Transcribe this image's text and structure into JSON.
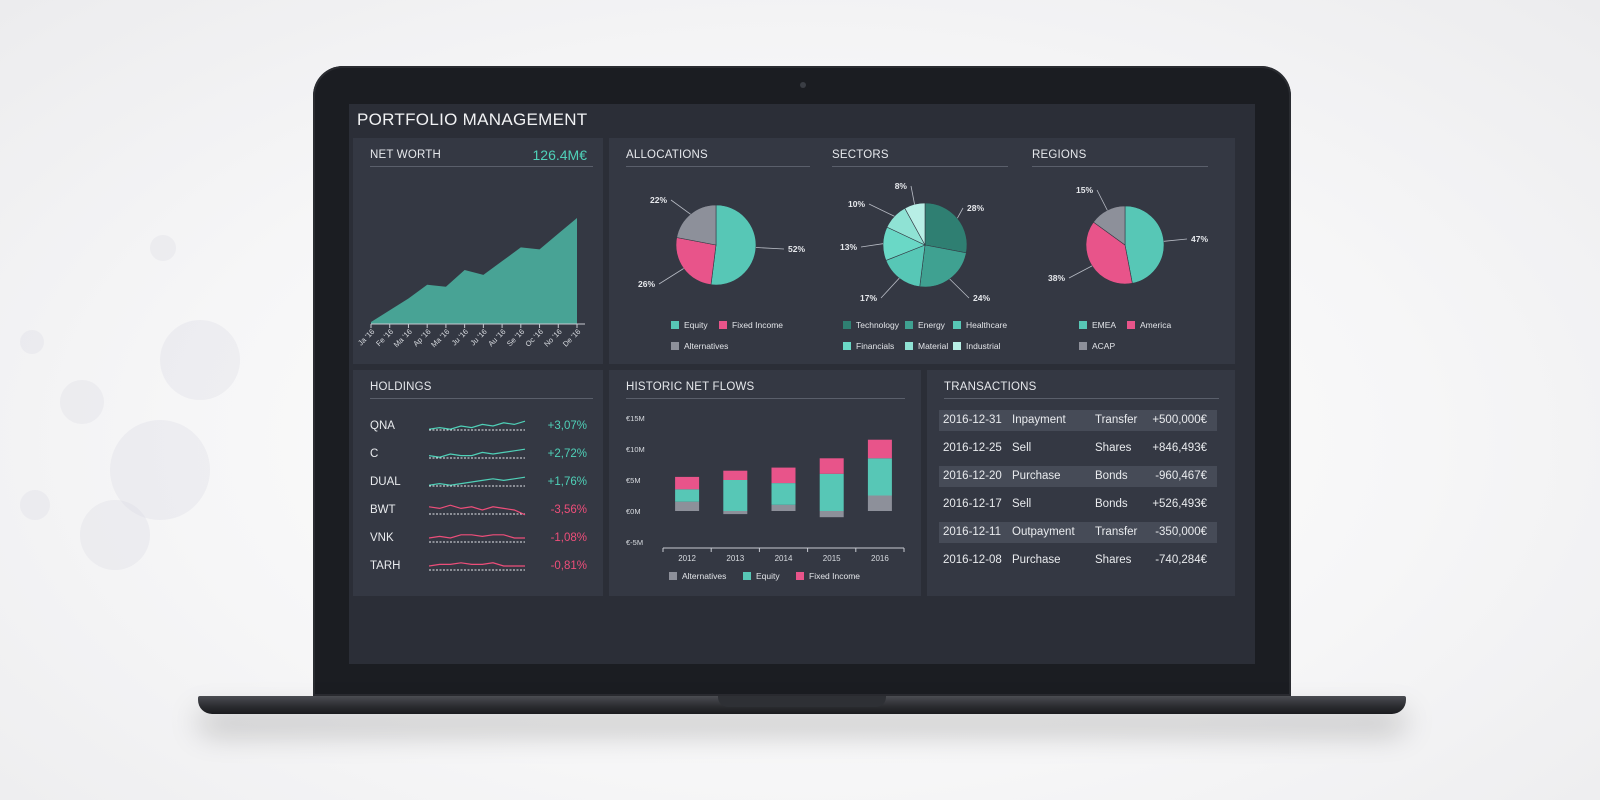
{
  "app": {
    "title": "PORTFOLIO MANAGEMENT"
  },
  "colors": {
    "teal": "#57c7b6",
    "pink": "#e8548a",
    "gray": "#8d909a",
    "positive": "#4fd1b8",
    "negative": "#ee4e7a",
    "panel": "#343843",
    "screen": "#2b2e37"
  },
  "net_worth": {
    "title": "NET WORTH",
    "value": "126.4M€",
    "months": [
      "Ja '16",
      "Fe '16",
      "Ma '16",
      "Ap '16",
      "Ma '16",
      "Ju '16",
      "Ju '16",
      "Au '16",
      "Se '16",
      "Oc '16",
      "No '16",
      "De '16"
    ],
    "chart_data": {
      "type": "area",
      "x": [
        "Ja '16",
        "Fe '16",
        "Ma '16",
        "Ap '16",
        "Ma '16",
        "Ju '16",
        "Ju '16",
        "Au '16",
        "Se '16",
        "Oc '16",
        "No '16",
        "De '16"
      ],
      "values": [
        2,
        14,
        26,
        40,
        38,
        55,
        50,
        64,
        78,
        76,
        92,
        108
      ]
    }
  },
  "allocations": {
    "title": "ALLOCATIONS",
    "chart_data": {
      "type": "pie",
      "labels": [
        "Equity",
        "Fixed Income",
        "Alternatives"
      ],
      "values": [
        52,
        26,
        22
      ],
      "value_labels": [
        "52%",
        "26%",
        "22%"
      ]
    },
    "legend": [
      "Equity",
      "Fixed Income",
      "Alternatives"
    ]
  },
  "sectors": {
    "title": "SECTORS",
    "chart_data": {
      "type": "pie",
      "labels": [
        "Technology",
        "Energy",
        "Healthcare",
        "Financials",
        "Material",
        "Industrial"
      ],
      "values": [
        28,
        24,
        17,
        13,
        10,
        8
      ],
      "value_labels": [
        "28%",
        "24%",
        "17%",
        "13%",
        "10%",
        "8%"
      ]
    },
    "legend": [
      "Technology",
      "Energy",
      "Healthcare",
      "Financials",
      "Material",
      "Industrial"
    ]
  },
  "regions": {
    "title": "REGIONS",
    "chart_data": {
      "type": "pie",
      "labels": [
        "EMEA",
        "America",
        "ACAP"
      ],
      "values": [
        47,
        38,
        15
      ],
      "value_labels": [
        "47%",
        "38%",
        "15%"
      ]
    },
    "legend": [
      "EMEA",
      "America",
      "ACAP"
    ]
  },
  "holdings": {
    "title": "HOLDINGS",
    "rows": [
      {
        "name": "QNA",
        "value": "+3,07%",
        "trend": "up",
        "spark": [
          3,
          4,
          3,
          5,
          4,
          6,
          5,
          7,
          6,
          8
        ]
      },
      {
        "name": "C",
        "value": "+2,72%",
        "trend": "up",
        "spark": [
          4,
          3,
          5,
          4,
          4,
          6,
          5,
          6,
          7,
          8
        ]
      },
      {
        "name": "DUAL",
        "value": "+1,76%",
        "trend": "up",
        "spark": [
          3,
          4,
          3,
          4,
          5,
          6,
          7,
          6,
          7,
          8
        ]
      },
      {
        "name": "BWT",
        "value": "-3,56%",
        "trend": "down",
        "spark": [
          7,
          6,
          8,
          6,
          7,
          5,
          7,
          6,
          5,
          2
        ]
      },
      {
        "name": "VNK",
        "value": "-1,08%",
        "trend": "down",
        "spark": [
          5,
          6,
          5,
          7,
          7,
          6,
          7,
          7,
          5,
          5
        ]
      },
      {
        "name": "TARH",
        "value": "-0,81%",
        "trend": "down",
        "spark": [
          5,
          6,
          6,
          7,
          6,
          6,
          7,
          5,
          5,
          5
        ]
      }
    ]
  },
  "net_flows": {
    "title": "HISTORIC NET FLOWS",
    "yticks": [
      "€15M",
      "€10M",
      "€5M",
      "€0M",
      "€-5M"
    ],
    "legend": [
      "Alternatives",
      "Equity",
      "Fixed Income"
    ],
    "chart_data": {
      "type": "bar",
      "stacked": true,
      "categories": [
        "2012",
        "2013",
        "2014",
        "2015",
        "2016"
      ],
      "ylim": [
        -5,
        15
      ],
      "series": [
        {
          "name": "Alternatives",
          "values": [
            1.5,
            -0.5,
            1.0,
            -1.0,
            2.5
          ]
        },
        {
          "name": "Equity",
          "values": [
            2.0,
            5.0,
            3.5,
            6.0,
            6.0
          ]
        },
        {
          "name": "Fixed Income",
          "values": [
            2.0,
            1.5,
            2.5,
            2.5,
            3.0
          ]
        }
      ]
    }
  },
  "transactions": {
    "title": "TRANSACTIONS",
    "rows": [
      {
        "date": "2016-12-31",
        "type": "Inpayment",
        "asset": "Transfer",
        "amount": "+500,000€"
      },
      {
        "date": "2016-12-25",
        "type": "Sell",
        "asset": "Shares",
        "amount": "+846,493€"
      },
      {
        "date": "2016-12-20",
        "type": "Purchase",
        "asset": "Bonds",
        "amount": "-960,467€"
      },
      {
        "date": "2016-12-17",
        "type": "Sell",
        "asset": "Bonds",
        "amount": "+526,493€"
      },
      {
        "date": "2016-12-11",
        "type": "Outpayment",
        "asset": "Transfer",
        "amount": "-350,000€"
      },
      {
        "date": "2016-12-08",
        "type": "Purchase",
        "asset": "Shares",
        "amount": "-740,284€"
      }
    ]
  }
}
